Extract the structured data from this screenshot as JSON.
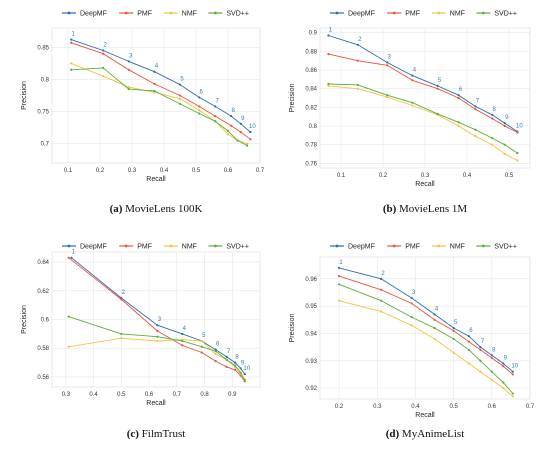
{
  "legend_order": [
    "DeepMF",
    "PMF",
    "NMF",
    "SVD++"
  ],
  "colors": {
    "DeepMF": "#2b6cb0",
    "PMF": "#e8543f",
    "NMF": "#f5c342",
    "SVD++": "#5aae3a"
  },
  "chart_data": [
    {
      "type": "line",
      "caption_tag": "(a)",
      "caption_text": "MovieLens 100K",
      "xlabel": "Recall",
      "ylabel": "Precision",
      "xlim": [
        0.05,
        0.7
      ],
      "ylim": [
        0.67,
        0.88
      ],
      "xticks": [
        0.1,
        0.2,
        0.3,
        0.4,
        0.5,
        0.6,
        0.7
      ],
      "yticks": [
        0.7,
        0.75,
        0.8,
        0.85
      ],
      "point_labels": [
        "1",
        "2",
        "3",
        "4",
        "5",
        "6",
        "7",
        "8",
        "9",
        "10"
      ],
      "label_series": "DeepMF",
      "series": [
        {
          "name": "DeepMF",
          "x": [
            0.11,
            0.21,
            0.29,
            0.37,
            0.45,
            0.51,
            0.56,
            0.61,
            0.64,
            0.67
          ],
          "y": [
            0.862,
            0.845,
            0.828,
            0.812,
            0.792,
            0.772,
            0.758,
            0.743,
            0.731,
            0.718
          ]
        },
        {
          "name": "PMF",
          "x": [
            0.11,
            0.21,
            0.29,
            0.37,
            0.45,
            0.51,
            0.56,
            0.61,
            0.64,
            0.67
          ],
          "y": [
            0.857,
            0.84,
            0.815,
            0.793,
            0.775,
            0.758,
            0.743,
            0.728,
            0.718,
            0.707
          ]
        },
        {
          "name": "NMF",
          "x": [
            0.11,
            0.21,
            0.29,
            0.37,
            0.45,
            0.51,
            0.56,
            0.6,
            0.63,
            0.66
          ],
          "y": [
            0.825,
            0.805,
            0.788,
            0.78,
            0.77,
            0.752,
            0.735,
            0.715,
            0.705,
            0.7
          ]
        },
        {
          "name": "SVD++",
          "x": [
            0.11,
            0.21,
            0.29,
            0.37,
            0.45,
            0.51,
            0.56,
            0.6,
            0.63,
            0.66
          ],
          "y": [
            0.815,
            0.818,
            0.785,
            0.782,
            0.762,
            0.747,
            0.735,
            0.72,
            0.705,
            0.697
          ]
        }
      ]
    },
    {
      "type": "line",
      "caption_tag": "(b)",
      "caption_text": "MovieLens 1M",
      "xlabel": "Recall",
      "ylabel": "Precision",
      "xlim": [
        0.05,
        0.55
      ],
      "ylim": [
        0.755,
        0.905
      ],
      "xticks": [
        0.1,
        0.2,
        0.3,
        0.4,
        0.5
      ],
      "yticks": [
        0.76,
        0.78,
        0.8,
        0.82,
        0.84,
        0.86,
        0.88,
        0.9
      ],
      "point_labels": [
        "1",
        "2",
        "3",
        "4",
        "5",
        "6",
        "7",
        "8",
        "9",
        "10"
      ],
      "label_series": "DeepMF",
      "series": [
        {
          "name": "DeepMF",
          "x": [
            0.07,
            0.14,
            0.21,
            0.27,
            0.33,
            0.38,
            0.42,
            0.46,
            0.49,
            0.52
          ],
          "y": [
            0.897,
            0.887,
            0.868,
            0.854,
            0.843,
            0.833,
            0.821,
            0.812,
            0.803,
            0.794
          ]
        },
        {
          "name": "PMF",
          "x": [
            0.07,
            0.14,
            0.21,
            0.27,
            0.33,
            0.38,
            0.42,
            0.46,
            0.49,
            0.52
          ],
          "y": [
            0.877,
            0.87,
            0.865,
            0.849,
            0.84,
            0.83,
            0.818,
            0.808,
            0.8,
            0.793
          ]
        },
        {
          "name": "NMF",
          "x": [
            0.07,
            0.14,
            0.21,
            0.27,
            0.33,
            0.38,
            0.42,
            0.46,
            0.49,
            0.52
          ],
          "y": [
            0.843,
            0.84,
            0.831,
            0.822,
            0.812,
            0.8,
            0.789,
            0.78,
            0.77,
            0.763
          ]
        },
        {
          "name": "SVD++",
          "x": [
            0.07,
            0.14,
            0.21,
            0.27,
            0.33,
            0.38,
            0.42,
            0.46,
            0.49,
            0.52
          ],
          "y": [
            0.845,
            0.844,
            0.833,
            0.825,
            0.813,
            0.804,
            0.796,
            0.787,
            0.78,
            0.771
          ]
        }
      ]
    },
    {
      "type": "line",
      "caption_tag": "(c)",
      "caption_text": "FilmTrust",
      "xlabel": "Recall",
      "ylabel": "Precision",
      "xlim": [
        0.25,
        1.0
      ],
      "ylim": [
        0.553,
        0.647
      ],
      "xticks": [
        0.3,
        0.4,
        0.5,
        0.6,
        0.7,
        0.8,
        0.9
      ],
      "yticks": [
        0.56,
        0.58,
        0.6,
        0.62,
        0.64
      ],
      "point_labels": [
        "1",
        "2",
        "3",
        "4",
        "5",
        "6",
        "7",
        "8",
        "9",
        "10"
      ],
      "label_series": "DeepMF",
      "series": [
        {
          "name": "DeepMF",
          "x": [
            0.32,
            0.5,
            0.63,
            0.72,
            0.79,
            0.84,
            0.88,
            0.91,
            0.93,
            0.945
          ],
          "y": [
            0.643,
            0.615,
            0.596,
            0.59,
            0.585,
            0.579,
            0.574,
            0.57,
            0.566,
            0.562
          ]
        },
        {
          "name": "PMF",
          "x": [
            0.31,
            0.5,
            0.63,
            0.72,
            0.79,
            0.84,
            0.88,
            0.91,
            0.93,
            0.945
          ],
          "y": [
            0.643,
            0.614,
            0.592,
            0.582,
            0.577,
            0.571,
            0.567,
            0.565,
            0.561,
            0.557
          ]
        },
        {
          "name": "NMF",
          "x": [
            0.31,
            0.5,
            0.63,
            0.72,
            0.79,
            0.84,
            0.88,
            0.91,
            0.93,
            0.945
          ],
          "y": [
            0.581,
            0.587,
            0.585,
            0.586,
            0.585,
            0.576,
            0.572,
            0.567,
            0.562,
            0.558
          ]
        },
        {
          "name": "SVD++",
          "x": [
            0.31,
            0.5,
            0.63,
            0.72,
            0.79,
            0.84,
            0.88,
            0.91,
            0.93,
            0.945
          ],
          "y": [
            0.602,
            0.59,
            0.588,
            0.585,
            0.581,
            0.578,
            0.572,
            0.568,
            0.563,
            0.558
          ]
        }
      ]
    },
    {
      "type": "line",
      "caption_tag": "(d)",
      "caption_text": "MyAnimeList",
      "xlabel": "Recall",
      "ylabel": "Precision",
      "xlim": [
        0.15,
        0.7
      ],
      "ylim": [
        0.916,
        0.968
      ],
      "xticks": [
        0.2,
        0.3,
        0.4,
        0.5,
        0.6,
        0.7
      ],
      "yticks": [
        0.92,
        0.93,
        0.94,
        0.95,
        0.96
      ],
      "point_labels": [
        "1",
        "2",
        "3",
        "4",
        "5",
        "6",
        "7",
        "8",
        "9",
        "10"
      ],
      "label_series": "DeepMF",
      "series": [
        {
          "name": "DeepMF",
          "x": [
            0.2,
            0.31,
            0.39,
            0.45,
            0.5,
            0.54,
            0.57,
            0.6,
            0.63,
            0.655
          ],
          "y": [
            0.964,
            0.96,
            0.953,
            0.947,
            0.942,
            0.939,
            0.935,
            0.932,
            0.929,
            0.926
          ]
        },
        {
          "name": "PMF",
          "x": [
            0.2,
            0.31,
            0.39,
            0.45,
            0.5,
            0.54,
            0.57,
            0.6,
            0.63,
            0.655
          ],
          "y": [
            0.961,
            0.956,
            0.951,
            0.945,
            0.941,
            0.937,
            0.934,
            0.931,
            0.928,
            0.925
          ]
        },
        {
          "name": "NMF",
          "x": [
            0.2,
            0.31,
            0.39,
            0.45,
            0.5,
            0.54,
            0.57,
            0.6,
            0.63,
            0.655
          ],
          "y": [
            0.952,
            0.948,
            0.943,
            0.938,
            0.933,
            0.929,
            0.926,
            0.923,
            0.92,
            0.917
          ]
        },
        {
          "name": "SVD++",
          "x": [
            0.2,
            0.31,
            0.39,
            0.45,
            0.5,
            0.54,
            0.57,
            0.6,
            0.63,
            0.655
          ],
          "y": [
            0.958,
            0.952,
            0.946,
            0.942,
            0.938,
            0.934,
            0.93,
            0.926,
            0.922,
            0.918
          ]
        }
      ]
    }
  ]
}
